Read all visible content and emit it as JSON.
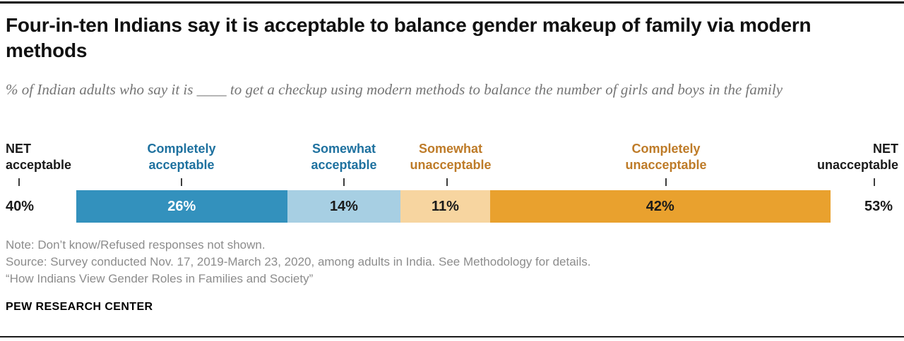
{
  "chart_data": {
    "type": "bar",
    "variant": "horizontal-stacked",
    "title": "Four-in-ten Indians say it is acceptable to balance gender makeup of family via modern methods",
    "subtitle": "% of Indian adults who say it is ____ to get a checkup using modern methods to balance the number of girls and boys in the family",
    "categories": [
      "Completely acceptable",
      "Somewhat acceptable",
      "Somewhat unacceptable",
      "Completely unacceptable"
    ],
    "values": [
      26,
      14,
      11,
      42
    ],
    "value_labels": [
      "26%",
      "14%",
      "11%",
      "42%"
    ],
    "segment_colors": [
      "#3391BD",
      "#A7CFE3",
      "#F7D5A0",
      "#E9A12E"
    ],
    "segment_text_colors": [
      "#FFFFFF",
      "#1A1A1A",
      "#1A1A1A",
      "#1A1A1A"
    ],
    "category_label_colors": [
      "#1E719F",
      "#1E719F",
      "#BE7B28",
      "#BE7B28"
    ],
    "net_acceptable": {
      "label_line1": "NET",
      "label_line2": "acceptable",
      "value": 40,
      "value_label": "40%"
    },
    "net_unacceptable": {
      "label_line1": "NET",
      "label_line2": "unacceptable",
      "value": 53,
      "value_label": "53%"
    }
  },
  "category_labels": {
    "completely_acceptable": {
      "l1": "Completely",
      "l2": "acceptable"
    },
    "somewhat_acceptable": {
      "l1": "Somewhat",
      "l2": "acceptable"
    },
    "somewhat_unacceptable": {
      "l1": "Somewhat",
      "l2": "unacceptable"
    },
    "completely_unacceptable": {
      "l1": "Completely",
      "l2": "unacceptable"
    }
  },
  "footer": {
    "note": "Note: Don’t know/Refused responses not shown.",
    "source": "Source: Survey conducted Nov. 17, 2019-March 23, 2020, among adults in India. See Methodology for details.",
    "report_title": "“How Indians View Gender Roles in Families and Society”",
    "brand": "PEW RESEARCH CENTER"
  }
}
